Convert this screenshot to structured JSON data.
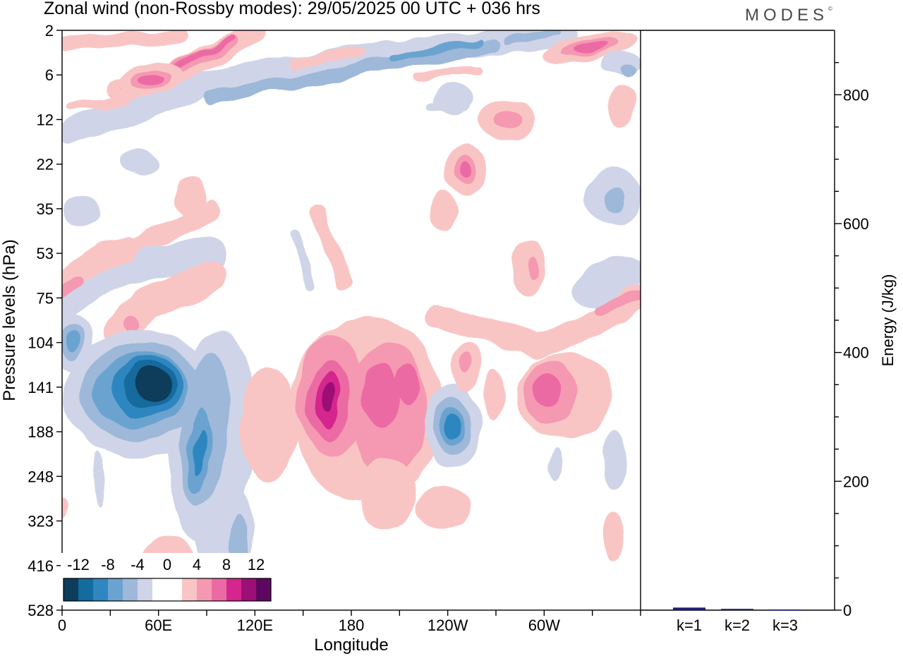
{
  "title": "Zonal wind (non-Rossby modes):  29/05/2025  00 UTC  + 036 hrs",
  "brand": "MODES",
  "brand_mark": "©",
  "colors": {
    "neg_12": "#0c3d5a",
    "neg_10": "#146b9e",
    "neg_8": "#2f86c0",
    "neg_6": "#6aa3cf",
    "neg_4": "#9db8d9",
    "neg_2": "#cfd4e8",
    "zero": "#ffffff",
    "pos_2": "#f9c5c4",
    "pos_4": "#f598b1",
    "pos_6": "#ec6aa4",
    "pos_8": "#d4268c",
    "pos_10": "#9c0f76",
    "pos_12": "#5e0760",
    "energy_bar": "#1c1c7a"
  },
  "chart_data": [
    {
      "type": "heatmap",
      "title": "Zonal wind (non-Rossby modes):  29/05/2025  00 UTC  + 036 hrs",
      "xlabel": "Longitude",
      "ylabel": "Pressure levels (hPa)",
      "xticks": [
        "0",
        "60E",
        "120E",
        "180",
        "120W",
        "60W"
      ],
      "xtick_values": [
        0,
        60,
        120,
        180,
        240,
        300
      ],
      "xlim": [
        0,
        360
      ],
      "yticks": [
        "2",
        "6",
        "12",
        "22",
        "35",
        "53",
        "75",
        "104",
        "141",
        "188",
        "248",
        "323",
        "416",
        "528"
      ],
      "y_axis_inverted": true,
      "colorbar": {
        "labels": [
          "-12",
          "-8",
          "-4",
          "0",
          "4",
          "8",
          "12"
        ],
        "levels": [
          -12,
          -10,
          -8,
          -6,
          -4,
          -2,
          2,
          4,
          6,
          8,
          10,
          12
        ],
        "placement": "bottom-left"
      },
      "features": [
        {
          "lon": 50,
          "level_index": 8.2,
          "value": -12,
          "desc": "strong easterly core"
        },
        {
          "lon": 84,
          "level_index": 9.8,
          "value": -8
        },
        {
          "lon": 9,
          "level_index": 7.2,
          "value": -6
        },
        {
          "lon": 246,
          "level_index": 9.3,
          "value": -10
        },
        {
          "lon": 166,
          "level_index": 8.6,
          "value": 10
        },
        {
          "lon": 205,
          "level_index": 8.2,
          "value": 8
        },
        {
          "lon": 300,
          "level_index": 8.3,
          "value": 8
        },
        {
          "lon": 80,
          "level_index": 1.1,
          "value": 8
        },
        {
          "lon": 58,
          "level_index": 1.2,
          "value": 6
        },
        {
          "lon": 329,
          "level_index": 0.4,
          "value": 8
        },
        {
          "lon": 252,
          "level_index": 0.6,
          "value": -8
        },
        {
          "lon": 132,
          "level_index": 0.5,
          "value": -6
        }
      ]
    },
    {
      "type": "bar",
      "categories": [
        "k=1",
        "k=2",
        "k=3"
      ],
      "values": [
        4,
        2,
        1
      ],
      "ylabel": "Energy (J/kg)",
      "ylim": [
        0,
        900
      ],
      "yticks": [
        "0",
        "200",
        "400",
        "600",
        "800"
      ],
      "ytick_values": [
        0,
        200,
        400,
        600,
        800
      ]
    }
  ]
}
